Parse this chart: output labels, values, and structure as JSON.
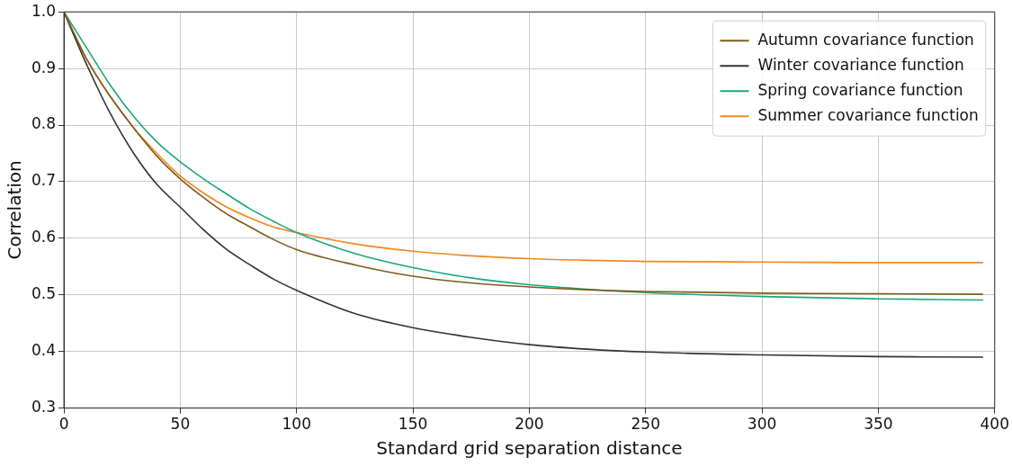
{
  "chart_data": {
    "type": "line",
    "xlabel": "Standard grid separation distance",
    "ylabel": "Correlation",
    "x": [
      0,
      10,
      20,
      30,
      40,
      50,
      60,
      70,
      80,
      90,
      100,
      125,
      150,
      175,
      200,
      225,
      250,
      300,
      350,
      395
    ],
    "series": [
      {
        "name": "Autumn covariance function",
        "color": "#7f5a1e",
        "values": [
          1.0,
          0.915,
          0.85,
          0.795,
          0.745,
          0.705,
          0.672,
          0.643,
          0.62,
          0.598,
          0.58,
          0.553,
          0.533,
          0.521,
          0.514,
          0.509,
          0.506,
          0.503,
          0.502,
          0.501
        ]
      },
      {
        "name": "Winter covariance function",
        "color": "#333333",
        "values": [
          1.0,
          0.905,
          0.82,
          0.75,
          0.695,
          0.655,
          0.615,
          0.58,
          0.553,
          0.528,
          0.508,
          0.467,
          0.442,
          0.425,
          0.412,
          0.404,
          0.399,
          0.394,
          0.391,
          0.39
        ]
      },
      {
        "name": "Spring covariance function",
        "color": "#1ba77b",
        "values": [
          1.0,
          0.935,
          0.87,
          0.815,
          0.77,
          0.735,
          0.705,
          0.678,
          0.652,
          0.63,
          0.61,
          0.573,
          0.548,
          0.53,
          0.518,
          0.51,
          0.504,
          0.497,
          0.493,
          0.491
        ]
      },
      {
        "name": "Summer covariance function",
        "color": "#f5861f",
        "values": [
          1.0,
          0.915,
          0.85,
          0.795,
          0.75,
          0.71,
          0.68,
          0.655,
          0.636,
          0.62,
          0.61,
          0.59,
          0.577,
          0.569,
          0.564,
          0.561,
          0.559,
          0.558,
          0.557,
          0.557
        ]
      }
    ],
    "xlim": [
      0,
      400
    ],
    "xticks": [
      0,
      50,
      100,
      150,
      200,
      250,
      300,
      350,
      400
    ],
    "ylim": [
      0.3,
      1.0
    ],
    "yticks": [
      {
        "value": 0.3,
        "label": "0.3"
      },
      {
        "value": 0.4,
        "label": "0.4"
      },
      {
        "value": 0.5,
        "label": "0.5"
      },
      {
        "value": 0.6,
        "label": "0.6"
      },
      {
        "value": 0.7,
        "label": "0.7"
      },
      {
        "value": 0.8,
        "label": "0.8"
      },
      {
        "value": 0.9,
        "label": "0.9"
      },
      {
        "value": 1.0,
        "label": "1.0"
      }
    ],
    "grid": true,
    "legend": "top right",
    "marker": "none",
    "line_style": "solid"
  }
}
